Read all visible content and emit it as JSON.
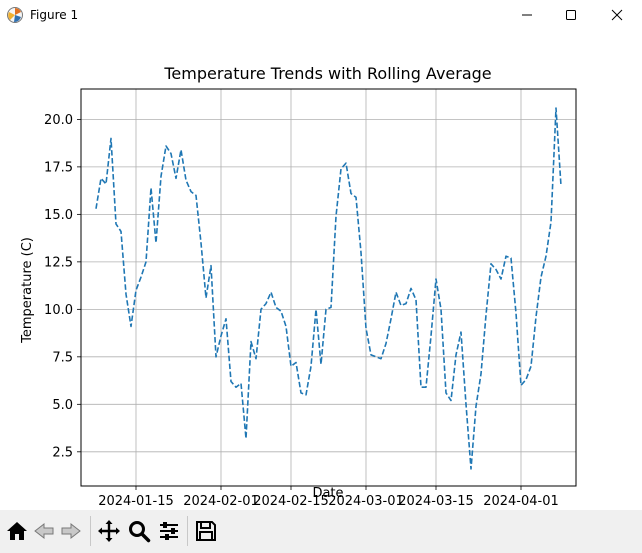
{
  "window": {
    "title": "Figure 1",
    "icons": [
      "matplotlib-icon",
      "minimize-icon",
      "maximize-icon",
      "close-icon"
    ]
  },
  "toolbar": {
    "buttons": [
      "home-icon",
      "back-icon",
      "forward-icon",
      "pan-icon",
      "zoom-icon",
      "configure-subplots-icon",
      "save-icon"
    ]
  },
  "colors": {
    "line": "#1f77b4",
    "grid": "#b0b0b0",
    "toolbar_bg": "#f0f0f0"
  },
  "chart_data": {
    "type": "line",
    "title": "Temperature Trends with Rolling Average",
    "xlabel": "Date",
    "ylabel": "Temperature (C)",
    "x_ticks": [
      "2024-01-15",
      "2024-02-01",
      "2024-02-15",
      "2024-03-01",
      "2024-03-15",
      "2024-04-01"
    ],
    "y_ticks": [
      "2.5",
      "5.0",
      "7.5",
      "10.0",
      "12.5",
      "15.0",
      "17.5",
      "20.0"
    ],
    "xlim": [
      "2024-01-04",
      "2024-04-12"
    ],
    "ylim": [
      0.7,
      21.6
    ],
    "grid": true,
    "line_style": "dashed",
    "series": [
      {
        "values": [
          [
            "2024-01-07",
            15.3
          ],
          [
            "2024-01-08",
            16.9
          ],
          [
            "2024-01-09",
            16.6
          ],
          [
            "2024-01-10",
            19.0
          ],
          [
            "2024-01-11",
            14.5
          ],
          [
            "2024-01-12",
            14.1
          ],
          [
            "2024-01-13",
            10.8
          ],
          [
            "2024-01-14",
            9.1
          ],
          [
            "2024-01-15",
            11.0
          ],
          [
            "2024-01-16",
            11.7
          ],
          [
            "2024-01-17",
            12.5
          ],
          [
            "2024-01-18",
            16.4
          ],
          [
            "2024-01-19",
            13.5
          ],
          [
            "2024-01-20",
            17.0
          ],
          [
            "2024-01-21",
            18.6
          ],
          [
            "2024-01-22",
            18.2
          ],
          [
            "2024-01-23",
            16.9
          ],
          [
            "2024-01-24",
            18.4
          ],
          [
            "2024-01-25",
            16.8
          ],
          [
            "2024-01-26",
            16.2
          ],
          [
            "2024-01-27",
            16.0
          ],
          [
            "2024-01-28",
            13.5
          ],
          [
            "2024-01-29",
            10.6
          ],
          [
            "2024-01-30",
            12.3
          ],
          [
            "2024-01-31",
            7.5
          ],
          [
            "2024-02-01",
            8.6
          ],
          [
            "2024-02-02",
            9.5
          ],
          [
            "2024-02-03",
            6.2
          ],
          [
            "2024-02-04",
            5.9
          ],
          [
            "2024-02-05",
            6.1
          ],
          [
            "2024-02-06",
            3.2
          ],
          [
            "2024-02-07",
            8.3
          ],
          [
            "2024-02-08",
            7.4
          ],
          [
            "2024-02-09",
            10.0
          ],
          [
            "2024-02-10",
            10.3
          ],
          [
            "2024-02-11",
            10.9
          ],
          [
            "2024-02-12",
            10.1
          ],
          [
            "2024-02-13",
            9.9
          ],
          [
            "2024-02-14",
            9.1
          ],
          [
            "2024-02-15",
            7.0
          ],
          [
            "2024-02-16",
            7.2
          ],
          [
            "2024-02-17",
            5.6
          ],
          [
            "2024-02-18",
            5.5
          ],
          [
            "2024-02-19",
            7.0
          ],
          [
            "2024-02-20",
            10.0
          ],
          [
            "2024-02-21",
            7.1
          ],
          [
            "2024-02-22",
            10.0
          ],
          [
            "2024-02-23",
            10.1
          ],
          [
            "2024-02-24",
            14.9
          ],
          [
            "2024-02-25",
            17.4
          ],
          [
            "2024-02-26",
            17.7
          ],
          [
            "2024-02-27",
            16.1
          ],
          [
            "2024-02-28",
            15.9
          ],
          [
            "2024-02-29",
            13.0
          ],
          [
            "2024-03-01",
            9.0
          ],
          [
            "2024-03-02",
            7.6
          ],
          [
            "2024-03-03",
            7.5
          ],
          [
            "2024-03-04",
            7.4
          ],
          [
            "2024-03-05",
            8.2
          ],
          [
            "2024-03-06",
            9.5
          ],
          [
            "2024-03-07",
            10.9
          ],
          [
            "2024-03-08",
            10.2
          ],
          [
            "2024-03-09",
            10.3
          ],
          [
            "2024-03-10",
            11.1
          ],
          [
            "2024-03-11",
            10.5
          ],
          [
            "2024-03-12",
            5.9
          ],
          [
            "2024-03-13",
            5.9
          ],
          [
            "2024-03-14",
            8.6
          ],
          [
            "2024-03-15",
            11.6
          ],
          [
            "2024-03-16",
            10.0
          ],
          [
            "2024-03-17",
            5.6
          ],
          [
            "2024-03-18",
            5.2
          ],
          [
            "2024-03-19",
            7.6
          ],
          [
            "2024-03-20",
            8.8
          ],
          [
            "2024-03-21",
            5.0
          ],
          [
            "2024-03-22",
            1.6
          ],
          [
            "2024-03-23",
            4.9
          ],
          [
            "2024-03-24",
            6.6
          ],
          [
            "2024-03-25",
            9.7
          ],
          [
            "2024-03-26",
            12.4
          ],
          [
            "2024-03-27",
            12.1
          ],
          [
            "2024-03-28",
            11.6
          ],
          [
            "2024-03-29",
            12.8
          ],
          [
            "2024-03-30",
            12.7
          ],
          [
            "2024-03-31",
            9.8
          ],
          [
            "2024-04-01",
            6.0
          ],
          [
            "2024-04-02",
            6.3
          ],
          [
            "2024-04-03",
            7.0
          ],
          [
            "2024-04-04",
            9.6
          ],
          [
            "2024-04-05",
            11.7
          ],
          [
            "2024-04-06",
            12.8
          ],
          [
            "2024-04-07",
            14.6
          ],
          [
            "2024-04-08",
            20.6
          ],
          [
            "2024-04-09",
            16.5
          ]
        ]
      }
    ]
  }
}
